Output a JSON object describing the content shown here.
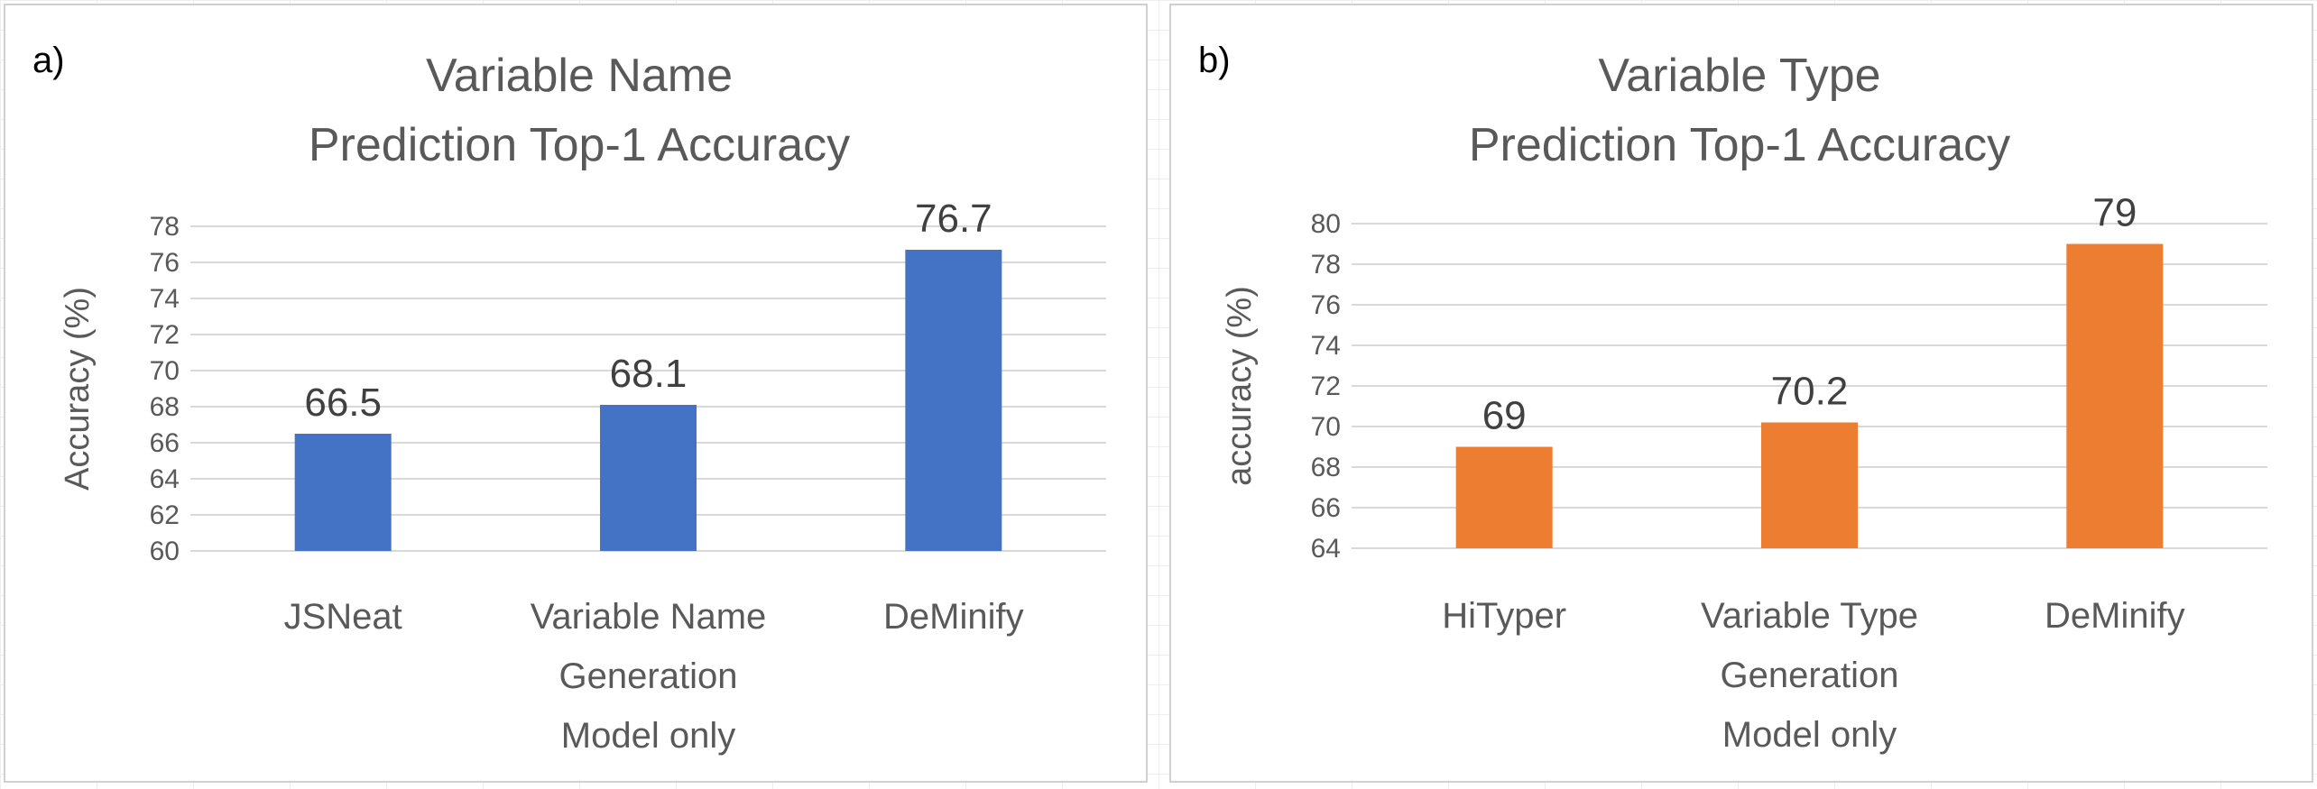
{
  "chart_data": [
    {
      "panel_label": "a)",
      "type": "bar",
      "title": [
        "Variable Name",
        "Prediction Top-1 Accuracy"
      ],
      "ylabel": "Accuracy (%)",
      "xlabel": "",
      "ylim": [
        60,
        78
      ],
      "yticks": [
        60,
        62,
        64,
        66,
        68,
        70,
        72,
        74,
        76,
        78
      ],
      "categories": [
        [
          "JSNeat"
        ],
        [
          "Variable Name",
          "Generation",
          "Model only"
        ],
        [
          "DeMinify"
        ]
      ],
      "values": [
        66.5,
        68.1,
        76.7
      ],
      "data_labels": [
        "66.5",
        "68.1",
        "76.7"
      ],
      "color": "#4472C4",
      "grid": true,
      "legend": "none"
    },
    {
      "panel_label": "b)",
      "type": "bar",
      "title": [
        "Variable Type",
        "Prediction Top-1 Accuracy"
      ],
      "ylabel": "accuracy (%)",
      "xlabel": "",
      "ylim": [
        64,
        80
      ],
      "yticks": [
        64,
        66,
        68,
        70,
        72,
        74,
        76,
        78,
        80
      ],
      "categories": [
        [
          "HiTyper"
        ],
        [
          "Variable Type",
          "Generation",
          "Model only"
        ],
        [
          "DeMinify"
        ]
      ],
      "values": [
        69,
        70.2,
        79
      ],
      "data_labels": [
        "69",
        "70.2",
        "79"
      ],
      "color": "#ED7D31",
      "grid": true,
      "legend": "none"
    }
  ]
}
